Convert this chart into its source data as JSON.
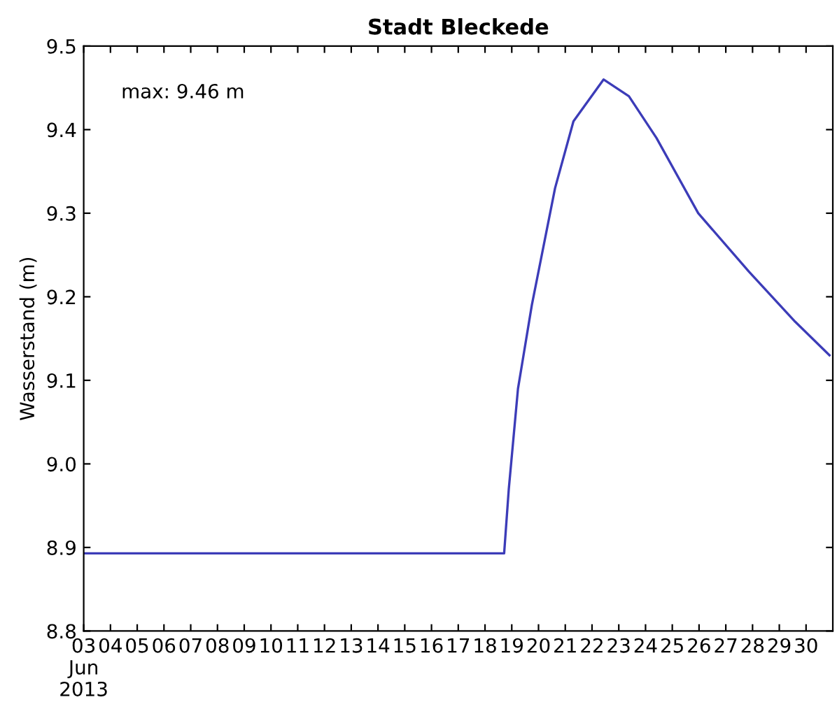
{
  "chart_data": {
    "type": "line",
    "title": "Stadt Bleckede",
    "ylabel": "Wasserstand (m)",
    "annotations": [
      "max: 9.46 m"
    ],
    "x": [
      "2013-06-03T00:00",
      "2013-06-18T17:10",
      "2013-06-18T21:20",
      "2013-06-19T05:35",
      "2013-06-19T18:00",
      "2013-06-20T14:50",
      "2013-06-21T07:20",
      "2013-06-22T10:20",
      "2013-06-23T09:05",
      "2013-06-24T09:50",
      "2013-06-25T23:15",
      "2013-06-27T20:50",
      "2013-06-29T14:20",
      "2013-06-30T21:00"
    ],
    "series": [
      {
        "color": "#3c3cb8",
        "values": [
          8.893,
          8.893,
          8.97,
          9.09,
          9.19,
          9.33,
          9.41,
          9.46,
          9.44,
          9.39,
          9.3,
          9.23,
          9.17,
          9.13
        ]
      }
    ],
    "xlim": [
      "2013-06-03T00:00",
      "2013-07-01T00:00"
    ],
    "xticks": [
      {
        "value": "2013-06-03",
        "label": "03\nJun\n2013"
      },
      {
        "value": "2013-06-04",
        "label": "04"
      },
      {
        "value": "2013-06-05",
        "label": "05"
      },
      {
        "value": "2013-06-06",
        "label": "06"
      },
      {
        "value": "2013-06-07",
        "label": "07"
      },
      {
        "value": "2013-06-08",
        "label": "08"
      },
      {
        "value": "2013-06-09",
        "label": "09"
      },
      {
        "value": "2013-06-10",
        "label": "10"
      },
      {
        "value": "2013-06-11",
        "label": "11"
      },
      {
        "value": "2013-06-12",
        "label": "12"
      },
      {
        "value": "2013-06-13",
        "label": "13"
      },
      {
        "value": "2013-06-14",
        "label": "14"
      },
      {
        "value": "2013-06-15",
        "label": "15"
      },
      {
        "value": "2013-06-16",
        "label": "16"
      },
      {
        "value": "2013-06-17",
        "label": "17"
      },
      {
        "value": "2013-06-18",
        "label": "18"
      },
      {
        "value": "2013-06-19",
        "label": "19"
      },
      {
        "value": "2013-06-20",
        "label": "20"
      },
      {
        "value": "2013-06-21",
        "label": "21"
      },
      {
        "value": "2013-06-22",
        "label": "22"
      },
      {
        "value": "2013-06-23",
        "label": "23"
      },
      {
        "value": "2013-06-24",
        "label": "24"
      },
      {
        "value": "2013-06-25",
        "label": "25"
      },
      {
        "value": "2013-06-26",
        "label": "26"
      },
      {
        "value": "2013-06-27",
        "label": "27"
      },
      {
        "value": "2013-06-28",
        "label": "28"
      },
      {
        "value": "2013-06-29",
        "label": "29"
      },
      {
        "value": "2013-06-30",
        "label": "30"
      }
    ],
    "ylim": [
      8.8,
      9.5
    ],
    "yticks": [
      8.8,
      8.9,
      {
        "value": 9,
        "label": "9.0"
      },
      9.1,
      9.2,
      9.3,
      9.4,
      9.5
    ],
    "grid": false,
    "legend": false,
    "marker": "none",
    "line_style": "solid"
  }
}
